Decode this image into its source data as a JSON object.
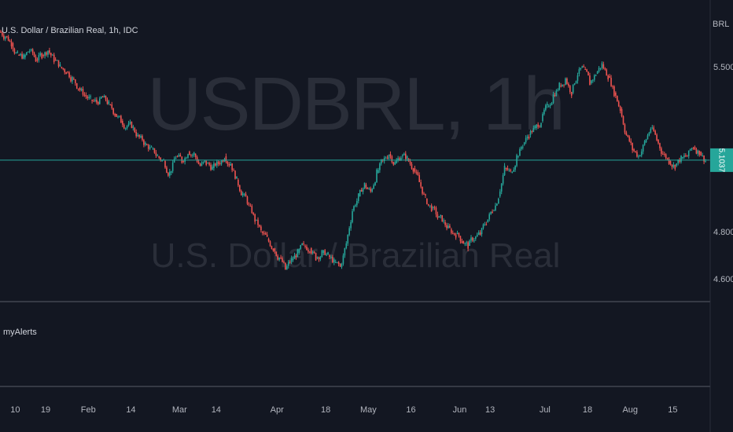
{
  "symbol_legend": "U.S. Dollar / Brazilian Real, 1h, IDC",
  "watermark": {
    "symbol": "USDBRL, 1h",
    "description": "U.S. Dollar / Brazilian Real"
  },
  "indicator_pane": {
    "label": "myAlerts"
  },
  "colors": {
    "background": "#131722",
    "up": "#26a69a",
    "down": "#ef5350",
    "price_line": "#26a69a",
    "separator": "#363a45",
    "axis_text": "#b2b5be",
    "watermark": "#2a2e39"
  },
  "chart_data": {
    "type": "candlestick",
    "currency_label": "BRL",
    "last_price": 5.1037,
    "last_price_label": "5.1037",
    "ylim": [
      4.55,
      5.65
    ],
    "yticks": [
      {
        "value": 5.5,
        "label": "5.5000"
      },
      {
        "value": 4.8,
        "label": "4.8000"
      },
      {
        "value": 4.6,
        "label": "4.6000"
      }
    ],
    "xticks": [
      {
        "index": 2,
        "label": "10"
      },
      {
        "index": 7,
        "label": "19"
      },
      {
        "index": 14,
        "label": "Feb"
      },
      {
        "index": 21,
        "label": "14"
      },
      {
        "index": 29,
        "label": "Mar"
      },
      {
        "index": 35,
        "label": "14"
      },
      {
        "index": 45,
        "label": "Apr"
      },
      {
        "index": 53,
        "label": "18"
      },
      {
        "index": 60,
        "label": "May"
      },
      {
        "index": 67,
        "label": "16"
      },
      {
        "index": 75,
        "label": "Jun"
      },
      {
        "index": 80,
        "label": "13"
      },
      {
        "index": 89,
        "label": "Jul"
      },
      {
        "index": 96,
        "label": "18"
      },
      {
        "index": 103,
        "label": "Aug"
      },
      {
        "index": 110,
        "label": "15"
      }
    ],
    "closes": [
      5.63,
      5.6,
      5.55,
      5.54,
      5.57,
      5.53,
      5.55,
      5.57,
      5.53,
      5.5,
      5.48,
      5.45,
      5.41,
      5.38,
      5.36,
      5.35,
      5.37,
      5.34,
      5.3,
      5.27,
      5.25,
      5.24,
      5.2,
      5.17,
      5.15,
      5.12,
      5.1,
      5.05,
      5.12,
      5.1,
      5.14,
      5.13,
      5.08,
      5.09,
      5.07,
      5.09,
      5.12,
      5.09,
      5.02,
      4.96,
      4.91,
      4.85,
      4.8,
      4.77,
      4.73,
      4.69,
      4.64,
      4.68,
      4.71,
      4.74,
      4.73,
      4.69,
      4.71,
      4.7,
      4.67,
      4.65,
      4.75,
      4.89,
      4.95,
      5.0,
      4.97,
      5.05,
      5.1,
      5.13,
      5.09,
      5.12,
      5.11,
      5.07,
      5.01,
      4.94,
      4.9,
      4.86,
      4.84,
      4.81,
      4.79,
      4.76,
      4.74,
      4.77,
      4.79,
      4.84,
      4.89,
      4.95,
      5.07,
      5.05,
      5.12,
      5.17,
      5.21,
      5.24,
      5.27,
      5.33,
      5.38,
      5.42,
      5.45,
      5.39,
      5.47,
      5.49,
      5.43,
      5.47,
      5.51,
      5.46,
      5.39,
      5.32,
      5.21,
      5.15,
      5.12,
      5.18,
      5.24,
      5.19,
      5.13,
      5.1,
      5.08,
      5.11,
      5.12,
      5.16,
      5.14,
      5.1
    ]
  }
}
